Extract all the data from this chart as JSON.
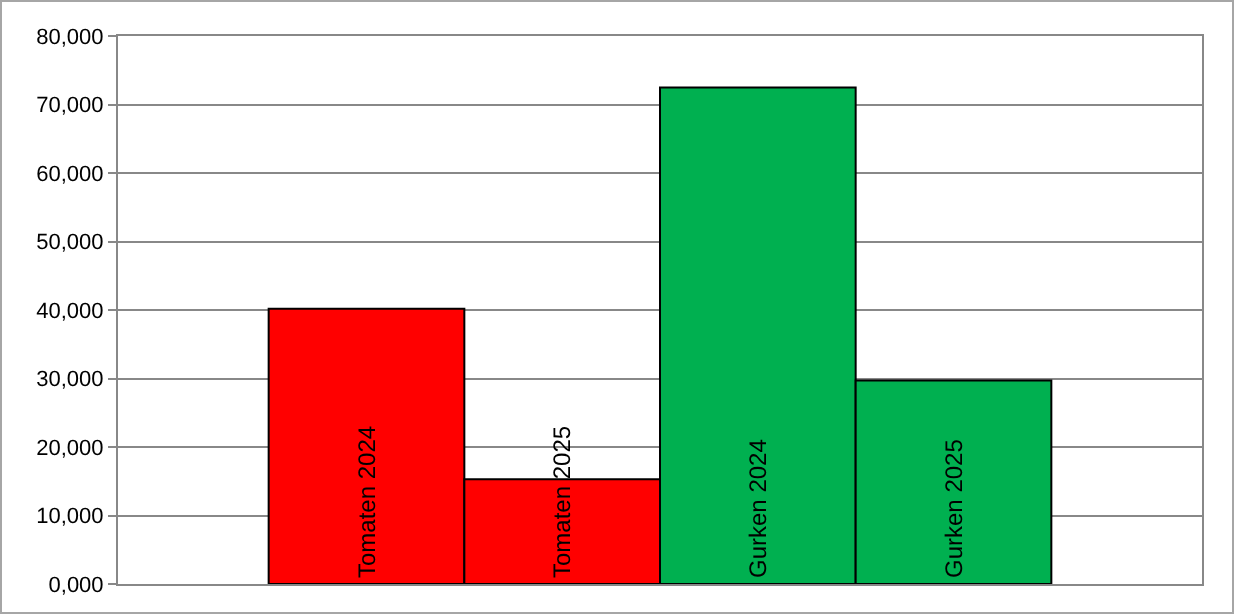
{
  "chart_data": {
    "type": "bar",
    "categories": [
      "Tomaten 2024",
      "Tomaten 2025",
      "Gurken 2024",
      "Gurken 2025"
    ],
    "values": [
      40200,
      15300,
      72500,
      29700
    ],
    "colors": [
      "#ff0000",
      "#ff0000",
      "#00b050",
      "#00b050"
    ],
    "ylim": [
      0,
      80000
    ],
    "yticks": [
      {
        "value": 0,
        "label": "0,000"
      },
      {
        "value": 10000,
        "label": "10,000"
      },
      {
        "value": 20000,
        "label": "20,000"
      },
      {
        "value": 30000,
        "label": "30,000"
      },
      {
        "value": 40000,
        "label": "40,000"
      },
      {
        "value": 50000,
        "label": "50,000"
      },
      {
        "value": 60000,
        "label": "60,000"
      },
      {
        "value": 70000,
        "label": "70,000"
      },
      {
        "value": 80000,
        "label": "80,000"
      }
    ],
    "grid": "y",
    "legend": false,
    "tick_labels": "y"
  }
}
